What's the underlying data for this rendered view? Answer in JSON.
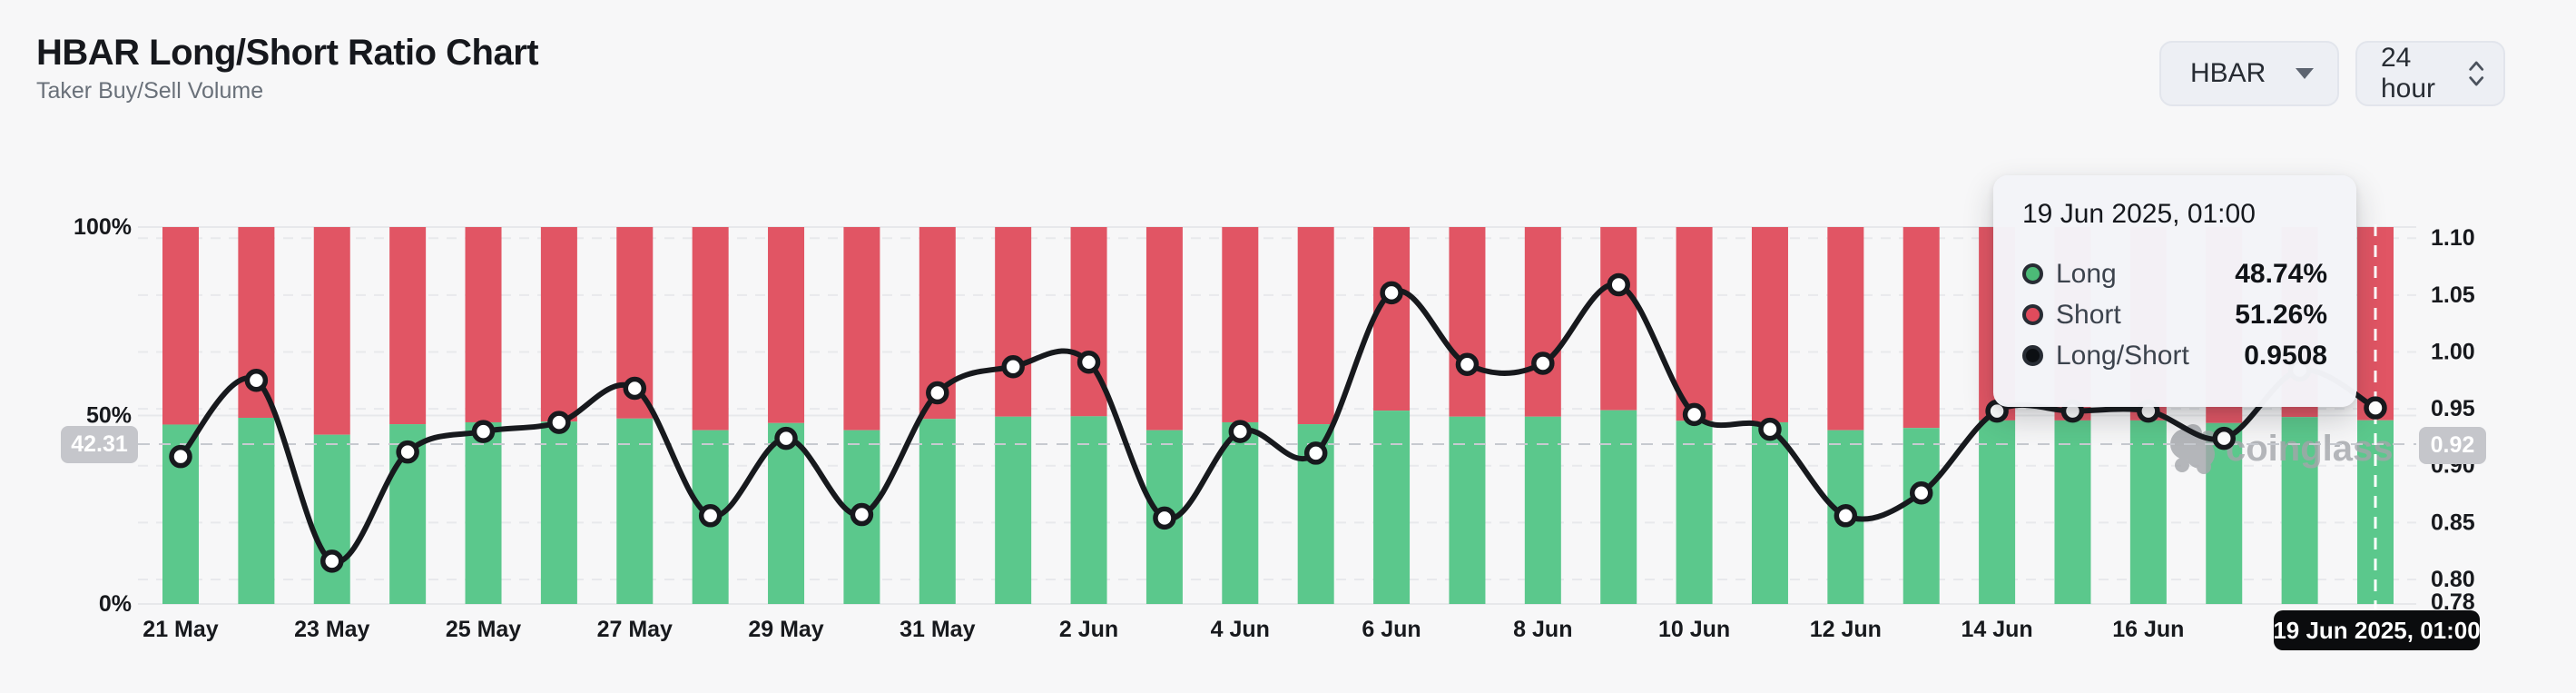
{
  "header": {
    "title": "HBAR Long/Short Ratio Chart",
    "subtitle": "Taker Buy/Sell Volume"
  },
  "controls": {
    "symbol": "HBAR",
    "interval": "24 hour"
  },
  "watermark": {
    "text": "coinglass"
  },
  "tooltip": {
    "title": "19 Jun 2025, 01:00",
    "rows": [
      {
        "label": "Long",
        "value": "48.74%",
        "marker": "#4cba77"
      },
      {
        "label": "Short",
        "value": "51.26%",
        "marker": "#e04b5c"
      },
      {
        "label": "Long/Short",
        "value": "0.9508",
        "marker": "#0c0f13"
      }
    ]
  },
  "crosshair": {
    "left_badge": "42.31",
    "right_badge": "0.92",
    "bottom_badge": "19 Jun 2025, 01:00",
    "left_value": 42.31,
    "right_value": 0.92,
    "hover_index": 29
  },
  "chart_data": {
    "type": "bar+line",
    "title": "HBAR Long/Short Ratio Chart",
    "subtitle": "Taker Buy/Sell Volume",
    "categories": [
      "21 May",
      "22 May",
      "23 May",
      "24 May",
      "25 May",
      "26 May",
      "27 May",
      "28 May",
      "29 May",
      "30 May",
      "31 May",
      "1 Jun",
      "2 Jun",
      "3 Jun",
      "4 Jun",
      "5 Jun",
      "6 Jun",
      "7 Jun",
      "8 Jun",
      "9 Jun",
      "10 Jun",
      "11 Jun",
      "12 Jun",
      "13 Jun",
      "14 Jun",
      "15 Jun",
      "16 Jun",
      "17 Jun",
      "18 Jun",
      "19 Jun"
    ],
    "x_axis_tick_labels": [
      "21 May",
      "23 May",
      "25 May",
      "27 May",
      "29 May",
      "31 May",
      "2 Jun",
      "4 Jun",
      "6 Jun",
      "8 Jun",
      "10 Jun",
      "12 Jun",
      "14 Jun",
      "16 Jun"
    ],
    "series": [
      {
        "name": "Long",
        "type": "bar",
        "stack": true,
        "unit": "%",
        "color": "#5bc88c",
        "values": [
          47.6,
          49.4,
          44.9,
          47.7,
          48.2,
          48.4,
          49.2,
          46.1,
          48.0,
          46.1,
          49.1,
          49.7,
          49.8,
          46.1,
          48.2,
          47.7,
          51.3,
          49.7,
          49.7,
          51.4,
          48.6,
          48.2,
          46.1,
          46.7,
          48.7,
          48.7,
          48.7,
          48.0,
          49.6,
          48.74
        ]
      },
      {
        "name": "Short",
        "type": "bar",
        "stack": true,
        "unit": "%",
        "color": "#e15564",
        "values": [
          52.4,
          50.6,
          55.1,
          52.3,
          51.8,
          51.6,
          50.8,
          53.9,
          52.0,
          53.9,
          50.9,
          50.3,
          50.2,
          53.9,
          51.8,
          52.3,
          48.7,
          50.3,
          50.3,
          48.6,
          51.4,
          51.8,
          53.9,
          53.3,
          51.3,
          51.3,
          51.3,
          52.0,
          50.4,
          51.26
        ]
      },
      {
        "name": "Long/Short",
        "type": "line",
        "axis": "right",
        "color": "#17191d",
        "values": [
          0.908,
          0.975,
          0.816,
          0.912,
          0.93,
          0.938,
          0.968,
          0.856,
          0.924,
          0.857,
          0.964,
          0.987,
          0.991,
          0.854,
          0.93,
          0.911,
          1.052,
          0.989,
          0.99,
          1.059,
          0.945,
          0.932,
          0.856,
          0.876,
          0.948,
          0.948,
          0.948,
          0.924,
          0.984,
          0.9508
        ]
      }
    ],
    "left_axis": {
      "ticks": [
        "0%",
        "50%",
        "100%"
      ],
      "range": [
        0,
        100
      ]
    },
    "right_axis": {
      "ticks": [
        0.78,
        0.8,
        0.85,
        0.9,
        0.95,
        1.0,
        1.05,
        1.1
      ],
      "range": [
        0.78,
        1.1
      ]
    },
    "legend_position": "none",
    "grid": true
  }
}
